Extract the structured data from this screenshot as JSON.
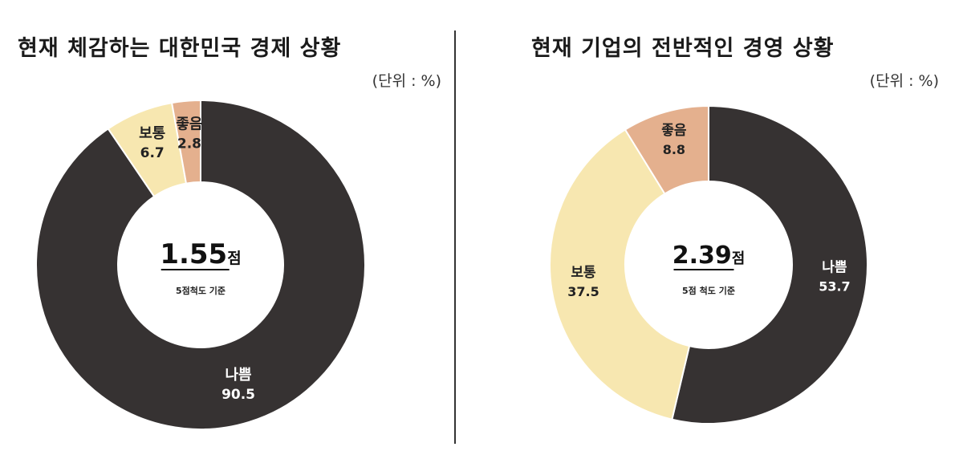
{
  "chart_data": [
    {
      "type": "pie",
      "title": "현재 체감하는 대한민국 경제 상황",
      "unit_label": "(단위 : %)",
      "center": {
        "value": "1.55",
        "suffix": "점",
        "note": "5점척도 기준"
      },
      "slices": [
        {
          "name": "나쁨",
          "value": 90.5,
          "label_value": "90.5",
          "color": "#363232"
        },
        {
          "name": "보통",
          "value": 6.7,
          "label_value": "6.7",
          "color": "#f7e7b0"
        },
        {
          "name": "좋음",
          "value": 2.8,
          "label_value": "2.8",
          "color": "#e4b08e"
        }
      ]
    },
    {
      "type": "pie",
      "title": "현재 기업의 전반적인 경영 상황",
      "unit_label": "(단위 : %)",
      "center": {
        "value": "2.39",
        "suffix": "점",
        "note": "5점 척도 기준"
      },
      "slices": [
        {
          "name": "나쁨",
          "value": 53.7,
          "label_value": "53.7",
          "color": "#363232"
        },
        {
          "name": "보통",
          "value": 37.5,
          "label_value": "37.5",
          "color": "#f7e7b0"
        },
        {
          "name": "좋음",
          "value": 8.8,
          "label_value": "8.8",
          "color": "#e4b08e"
        }
      ]
    }
  ]
}
